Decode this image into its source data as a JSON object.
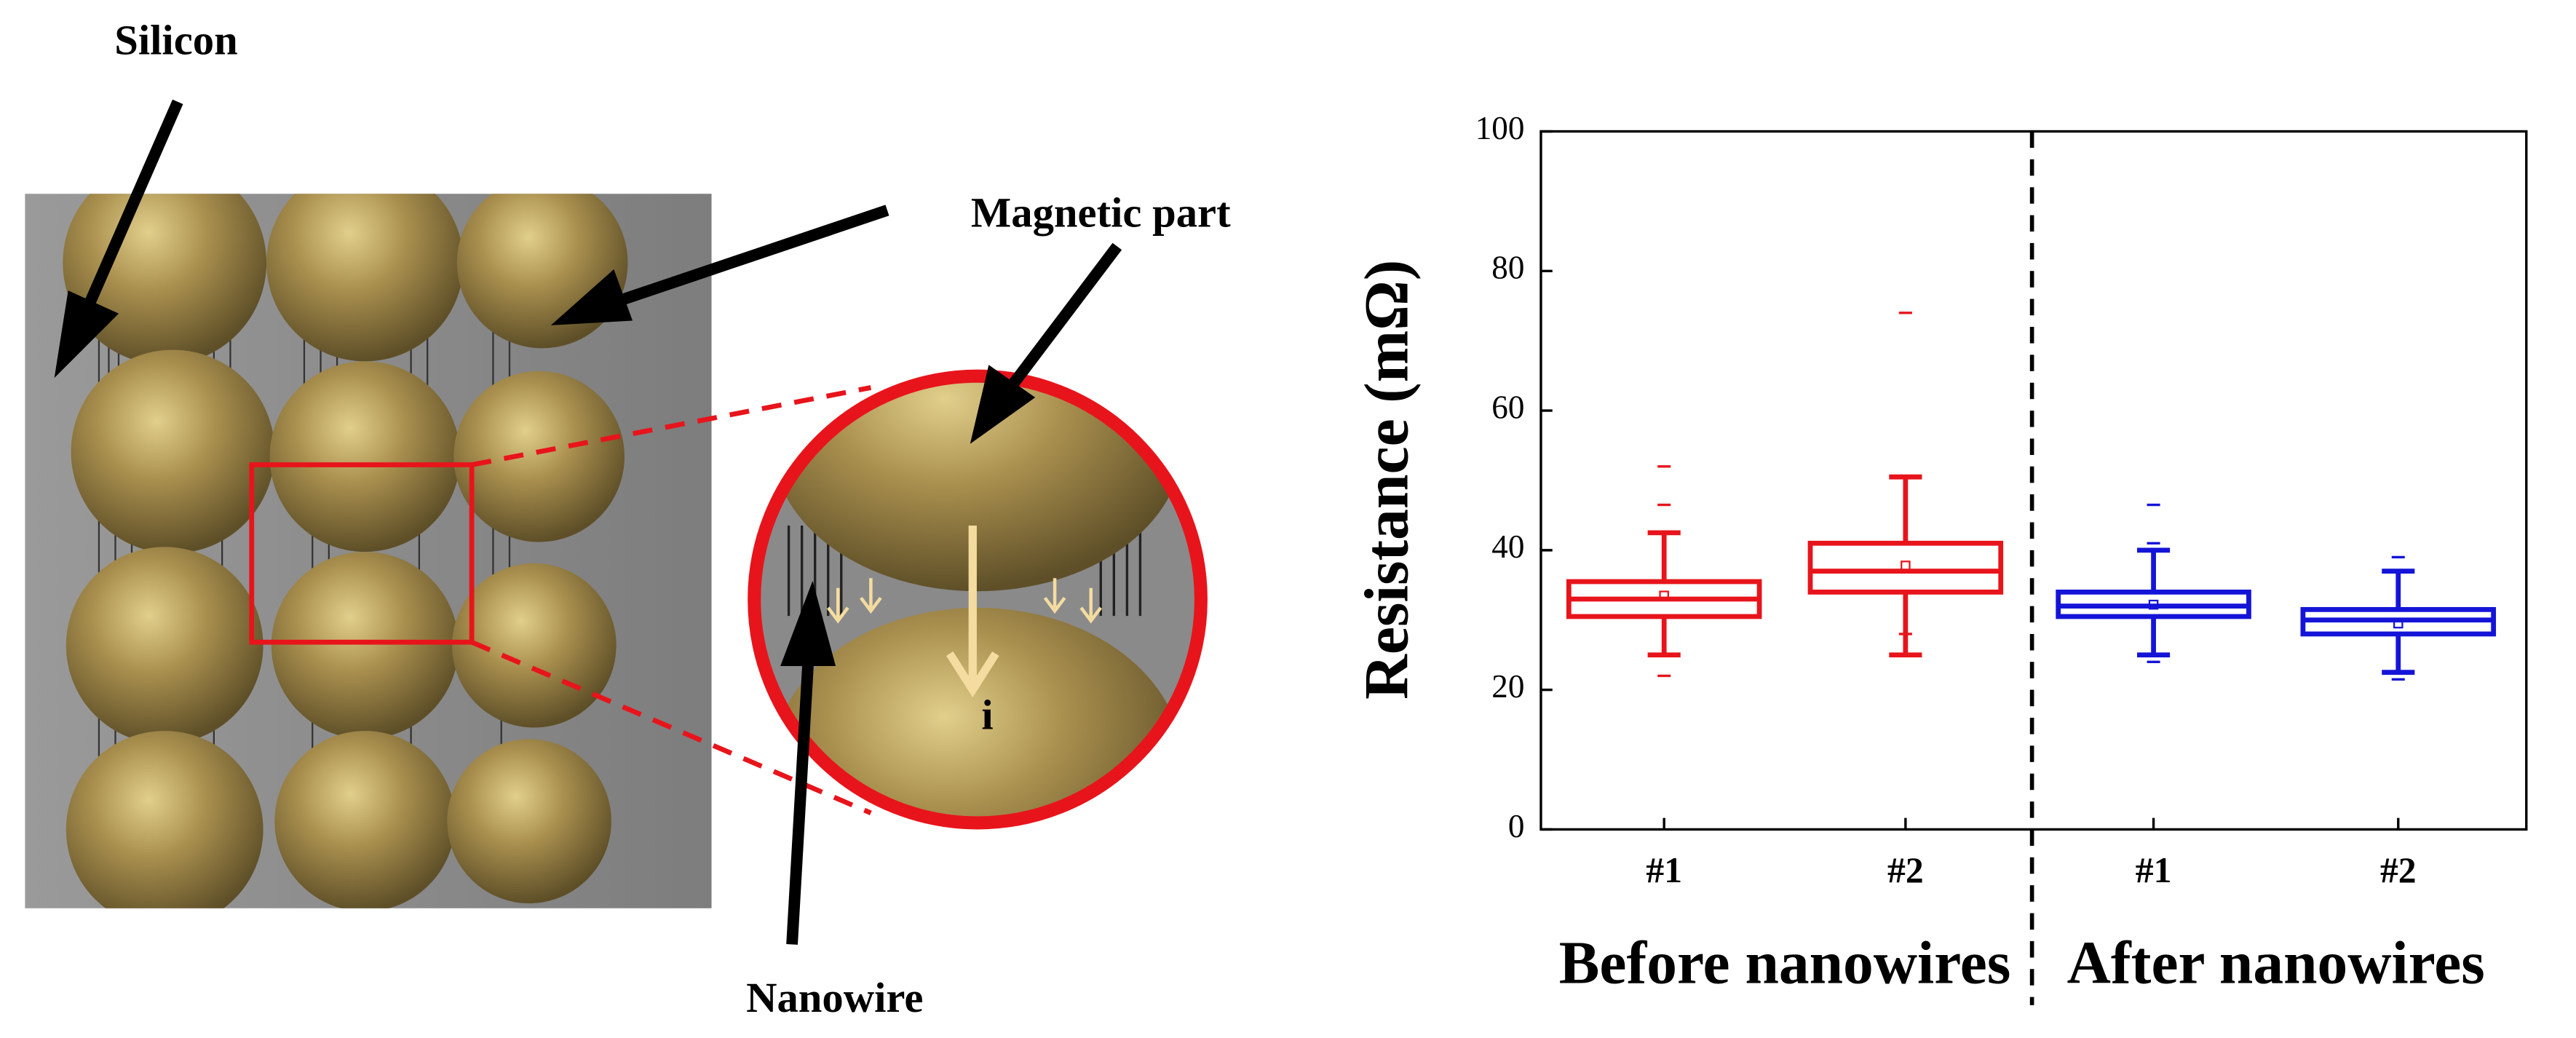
{
  "illustration": {
    "silicon_label": "Silicon",
    "magnetic_label": "Magnetic part",
    "nanowire_label": "Nanowire",
    "current_label": "i"
  },
  "chart_data": {
    "type": "box",
    "y_label": "Resistance (mΩ)",
    "categories": [
      "#1",
      "#2",
      "#1",
      "#2"
    ],
    "groups": [
      {
        "label": "Before nanowires",
        "categories": [
          0,
          1
        ]
      },
      {
        "label": "After nanowires",
        "categories": [
          2,
          3
        ]
      }
    ],
    "ylim": [
      0,
      100
    ],
    "yticks": [
      0,
      20,
      40,
      60,
      80,
      100
    ],
    "boxes": [
      {
        "color": "#e8141b",
        "whisker_low": 25,
        "q1": 30.5,
        "median": 33,
        "q3": 35.5,
        "whisker_high": 42.5,
        "mean": 33.5,
        "outliers": [
          46.5,
          52,
          22
        ]
      },
      {
        "color": "#e8141b",
        "whisker_low": 25,
        "q1": 34,
        "median": 37,
        "q3": 41,
        "whisker_high": 50.5,
        "mean": 37.8,
        "outliers": [
          74,
          28
        ]
      },
      {
        "color": "#1414d8",
        "whisker_low": 25,
        "q1": 30.5,
        "median": 32,
        "q3": 34,
        "whisker_high": 40,
        "mean": 32.2,
        "outliers": [
          46.5,
          41,
          24
        ]
      },
      {
        "color": "#1414d8",
        "whisker_low": 22.5,
        "q1": 28,
        "median": 30,
        "q3": 31.5,
        "whisker_high": 37,
        "mean": 29.5,
        "outliers": [
          39,
          21.5
        ]
      }
    ]
  }
}
